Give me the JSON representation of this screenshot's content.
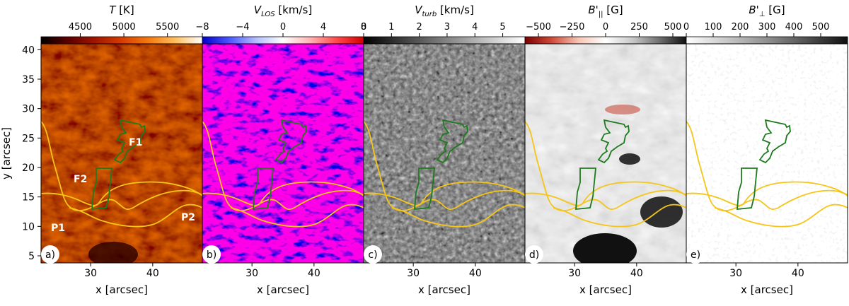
{
  "y_axis": {
    "label": "y [arcsec]",
    "ticks": [
      "5",
      "10",
      "15",
      "20",
      "25",
      "30",
      "35",
      "40"
    ]
  },
  "x_axis_label": "x [arcsec]",
  "x_ticks": [
    "30",
    "40"
  ],
  "panels": [
    {
      "id": "a",
      "panel_label": "a)",
      "colorbar_title": "T [K]",
      "colorbar_ticks": [
        "4500",
        "5000",
        "5500"
      ],
      "cmap": [
        "#000000",
        "#5a0000",
        "#a01500",
        "#d63d00",
        "#f47a10",
        "#ffc060",
        "#ffffff"
      ]
    },
    {
      "id": "b",
      "panel_label": "b)",
      "colorbar_title": "V_LOS [km/s]",
      "colorbar_ticks": [
        "−8",
        "−4",
        "0",
        "4",
        "8"
      ],
      "cmap": [
        "#0000c8",
        "#4a56ff",
        "#b4beff",
        "#ffffff",
        "#ffb4b4",
        "#ff4a4a",
        "#d10000"
      ]
    },
    {
      "id": "c",
      "panel_label": "c)",
      "colorbar_title": "V_turb [km/s]",
      "colorbar_ticks": [
        "0",
        "1",
        "2",
        "3",
        "4",
        "5"
      ],
      "cmap": [
        "#000000",
        "#404040",
        "#808080",
        "#c0c0c0",
        "#ffffff"
      ]
    },
    {
      "id": "d",
      "panel_label": "d)",
      "colorbar_title": "B'_|| [G]",
      "colorbar_ticks": [
        "−500",
        "−250",
        "0",
        "250",
        "500"
      ],
      "cmap": [
        "#7a0000",
        "#d04a3a",
        "#f6c6b6",
        "#ffffff",
        "#c8c8c8",
        "#707070",
        "#101010"
      ]
    },
    {
      "id": "e",
      "panel_label": "e)",
      "colorbar_title": "B'_⊥ [G]",
      "colorbar_ticks": [
        "0",
        "100",
        "200",
        "300",
        "400",
        "500"
      ],
      "cmap": [
        "#ffffff",
        "#c8c8c8",
        "#909090",
        "#505050",
        "#101010"
      ]
    }
  ],
  "annotations": {
    "F1": "F1",
    "F2": "F2",
    "P1": "P1",
    "P2": "P2"
  },
  "colors": {
    "filament_contour": "#1e7a1e",
    "penumbra_contour": "#f5c518"
  }
}
